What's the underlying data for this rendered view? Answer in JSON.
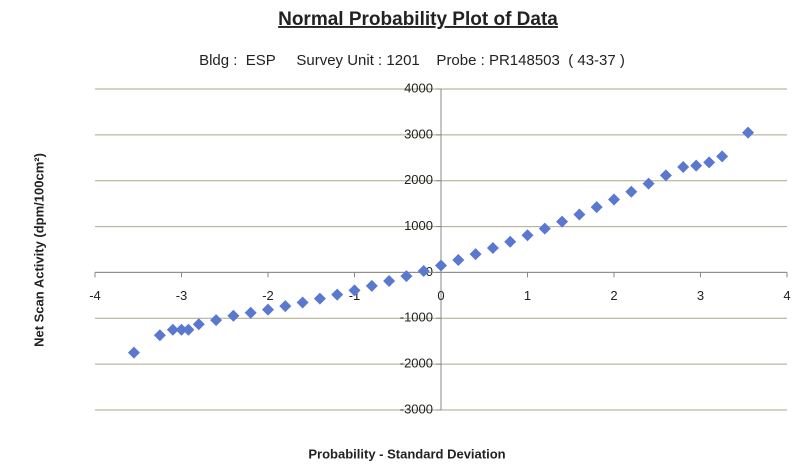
{
  "chart_data": {
    "type": "scatter",
    "title": "Normal Probability Plot of Data",
    "subtitle": "Bldg :  ESP     Survey Unit : 1201    Probe : PR148503  ( 43-37 )",
    "x_label": "Probability - Standard Deviation",
    "y_label": "Net Scan Activity (dpm/100cm²)",
    "color": "#5b78d0",
    "x": [
      -3.55,
      -3.25,
      -3.1,
      -3.0,
      -2.92,
      -2.8,
      -2.6,
      -2.4,
      -2.2,
      -2.0,
      -1.8,
      -1.6,
      -1.4,
      -1.2,
      -1.0,
      -0.8,
      -0.6,
      -0.4,
      -0.2,
      0,
      0.2,
      0.4,
      0.6,
      0.8,
      1.0,
      1.2,
      1.4,
      1.6,
      1.8,
      2.0,
      2.2,
      2.4,
      2.6,
      2.8,
      2.95,
      3.1,
      3.25,
      3.55
    ],
    "values": [
      -1750,
      -1370,
      -1250,
      -1250,
      -1250,
      -1130,
      -1040,
      -944,
      -880,
      -810,
      -736,
      -656,
      -572,
      -484,
      -390,
      -292,
      -188,
      -80,
      32,
      150,
      272,
      400,
      532,
      668,
      810,
      956,
      1108,
      1264,
      1424,
      1590,
      1760,
      1936,
      2116,
      2300,
      2330,
      2400,
      2530,
      3050
    ],
    "xlim": [
      -4,
      4
    ],
    "xticks": [
      -4,
      -3,
      -2,
      -1,
      0,
      1,
      2,
      3,
      4
    ],
    "ylim": [
      -3000,
      4000
    ],
    "yticks": [
      -3000,
      -2000,
      -1000,
      0,
      1000,
      2000,
      3000,
      4000
    ],
    "grid": true
  }
}
